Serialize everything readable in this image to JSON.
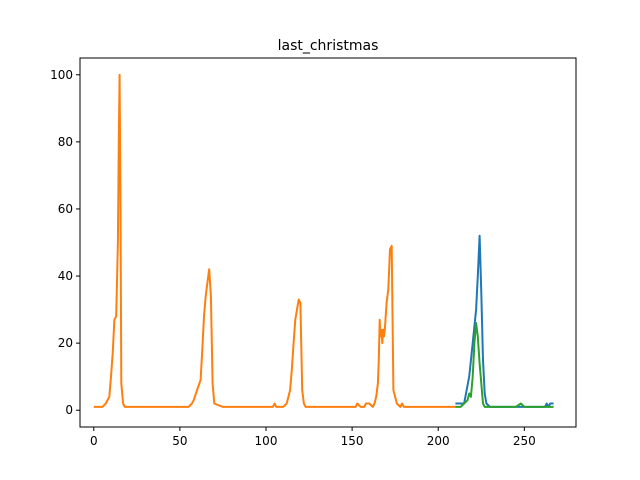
{
  "chart_data": {
    "type": "line",
    "title": "last_christmas",
    "xlabel": "",
    "ylabel": "",
    "xlim": [
      -8,
      280
    ],
    "ylim": [
      -5,
      105
    ],
    "xticks": [
      0,
      50,
      100,
      150,
      200,
      250
    ],
    "yticks": [
      0,
      20,
      40,
      60,
      80,
      100
    ],
    "grid": false,
    "colors": [
      "#1f77b4",
      "#ff7f0e",
      "#2ca02c"
    ],
    "series": [
      {
        "x": [
          210,
          215,
          218,
          220,
          222,
          223,
          224,
          225,
          226,
          227,
          228,
          230,
          235,
          240,
          245,
          250,
          255,
          260,
          262,
          263,
          264,
          265,
          266,
          267
        ],
        "y": [
          2,
          2,
          10,
          20,
          30,
          40,
          52,
          35,
          15,
          5,
          2,
          1,
          1,
          1,
          1,
          1,
          1,
          1,
          1,
          2,
          1,
          2,
          2,
          2
        ]
      },
      {
        "x": [
          0,
          5,
          7,
          9,
          10,
          11,
          12,
          13,
          14,
          14.5,
          15,
          15.5,
          16,
          17,
          18,
          20,
          25,
          30,
          35,
          40,
          45,
          50,
          55,
          57,
          58,
          60,
          62,
          63,
          64,
          65,
          66,
          67,
          68,
          69,
          70,
          75,
          80,
          90,
          100,
          104,
          105,
          106,
          110,
          112,
          114,
          115,
          116,
          117,
          118,
          119,
          120,
          121,
          122,
          123,
          125,
          130,
          140,
          150,
          152,
          153,
          155,
          157,
          158,
          160,
          162,
          163,
          164,
          165,
          165.5,
          166,
          166.5,
          167,
          167.5,
          168,
          168.5,
          169,
          170,
          171,
          172,
          173,
          174,
          176,
          178,
          179,
          180,
          185,
          190,
          200,
          210
        ],
        "y": [
          1,
          1,
          2,
          4,
          10,
          17,
          27,
          28,
          50,
          80,
          100,
          60,
          8,
          2,
          1,
          1,
          1,
          1,
          1,
          1,
          1,
          1,
          1,
          2,
          3,
          6,
          9,
          18,
          28,
          34,
          38,
          42,
          34,
          8,
          2,
          1,
          1,
          1,
          1,
          1,
          2,
          1,
          1,
          2,
          6,
          12,
          20,
          27,
          30,
          33,
          32,
          6,
          2,
          1,
          1,
          1,
          1,
          1,
          1,
          2,
          1,
          1,
          2,
          2,
          1,
          2,
          4,
          8,
          15,
          27,
          22,
          24,
          20,
          24,
          22,
          24,
          32,
          36,
          48,
          49,
          6,
          2,
          1,
          2,
          1,
          1,
          1,
          1,
          1
        ]
      },
      {
        "x": [
          210,
          213,
          215,
          217,
          218,
          219,
          220,
          221,
          222,
          223,
          224,
          225,
          226,
          227,
          228,
          230,
          235,
          240,
          245,
          248,
          250,
          255,
          260,
          262,
          264,
          265,
          266,
          267
        ],
        "y": [
          1,
          1,
          2,
          3,
          5,
          4,
          10,
          20,
          26,
          22,
          14,
          8,
          2,
          1,
          1,
          1,
          1,
          1,
          1,
          2,
          1,
          1,
          1,
          1,
          1,
          1,
          1,
          1
        ]
      }
    ]
  }
}
